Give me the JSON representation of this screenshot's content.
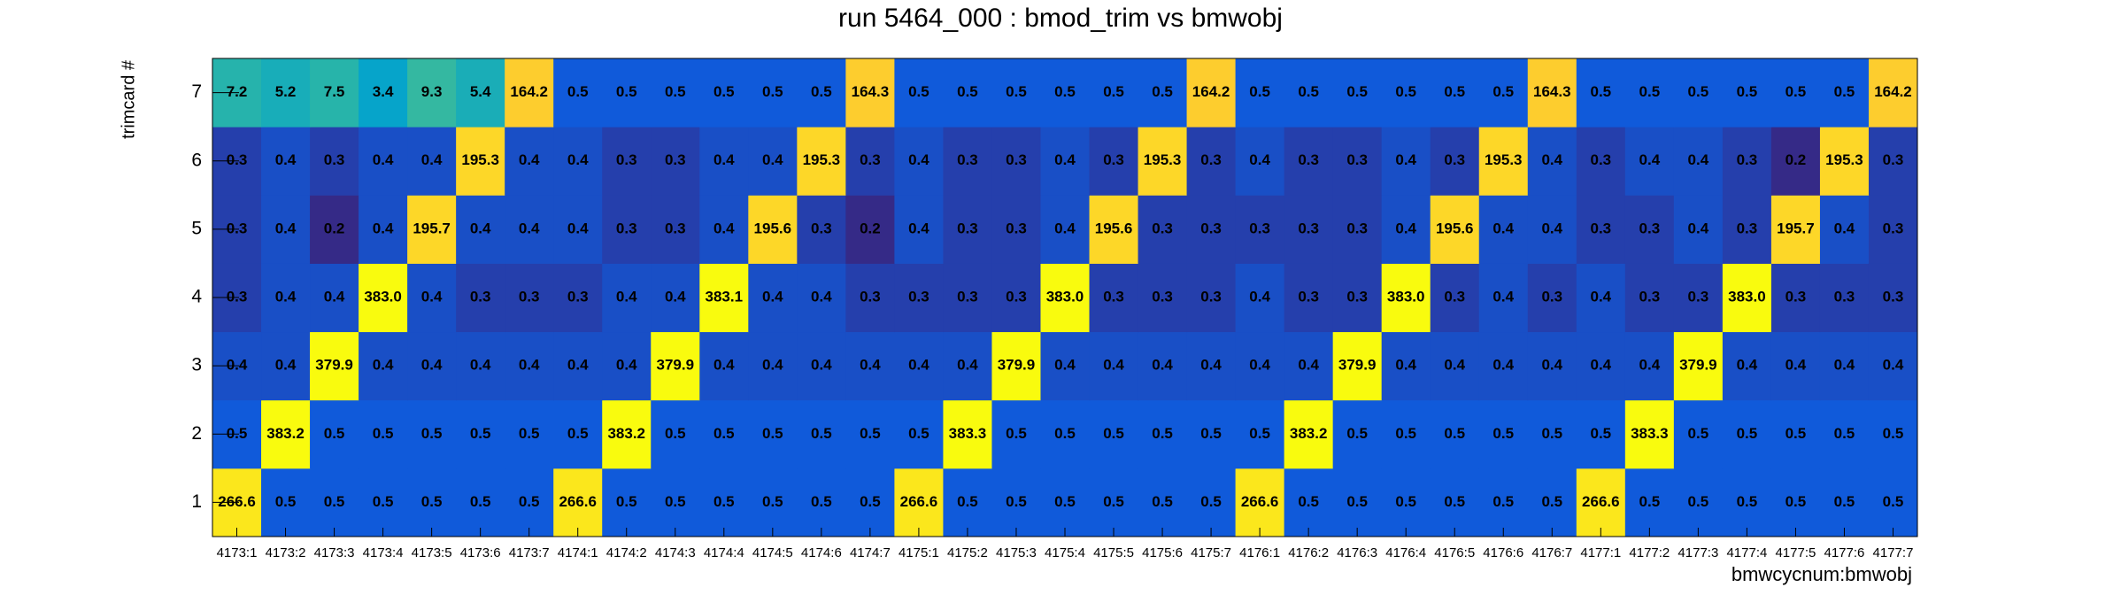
{
  "chart_data": {
    "type": "heatmap",
    "title": "run 5464_000 : bmod_trim vs bmwobj",
    "x_label": "bmwcycnum:bmwobj",
    "y_label": "trimcard #",
    "log_z": true,
    "palette": [
      "#352a87",
      "#0f5cdd",
      "#1481d6",
      "#06a4ca",
      "#2eb7a4",
      "#87bf77",
      "#d1bb59",
      "#fec832",
      "#f9fb0e"
    ],
    "x_categories": [
      "4173:1",
      "4173:2",
      "4173:3",
      "4173:4",
      "4173:5",
      "4173:6",
      "4173:7",
      "4174:1",
      "4174:2",
      "4174:3",
      "4174:4",
      "4174:5",
      "4174:6",
      "4174:7",
      "4175:1",
      "4175:2",
      "4175:3",
      "4175:4",
      "4175:5",
      "4175:6",
      "4175:7",
      "4176:1",
      "4176:2",
      "4176:3",
      "4176:4",
      "4176:5",
      "4176:6",
      "4176:7",
      "4177:1",
      "4177:2",
      "4177:3",
      "4177:4",
      "4177:5",
      "4177:6",
      "4177:7"
    ],
    "y_categories": [
      "1",
      "2",
      "3",
      "4",
      "5",
      "6",
      "7"
    ],
    "values": [
      [
        266.6,
        0.5,
        0.5,
        0.5,
        0.5,
        0.5,
        0.5,
        266.6,
        0.5,
        0.5,
        0.5,
        0.5,
        0.5,
        0.5,
        266.6,
        0.5,
        0.5,
        0.5,
        0.5,
        0.5,
        0.5,
        266.6,
        0.5,
        0.5,
        0.5,
        0.5,
        0.5,
        0.5,
        266.6,
        0.5,
        0.5,
        0.5,
        0.5,
        0.5,
        0.5
      ],
      [
        0.5,
        383.2,
        0.5,
        0.5,
        0.5,
        0.5,
        0.5,
        0.5,
        383.2,
        0.5,
        0.5,
        0.5,
        0.5,
        0.5,
        0.5,
        383.3,
        0.5,
        0.5,
        0.5,
        0.5,
        0.5,
        0.5,
        383.2,
        0.5,
        0.5,
        0.5,
        0.5,
        0.5,
        0.5,
        383.3,
        0.5,
        0.5,
        0.5,
        0.5,
        0.5
      ],
      [
        0.4,
        0.4,
        379.9,
        0.4,
        0.4,
        0.4,
        0.4,
        0.4,
        0.4,
        379.9,
        0.4,
        0.4,
        0.4,
        0.4,
        0.4,
        0.4,
        379.9,
        0.4,
        0.4,
        0.4,
        0.4,
        0.4,
        0.4,
        379.9,
        0.4,
        0.4,
        0.4,
        0.4,
        0.4,
        0.4,
        379.9,
        0.4,
        0.4,
        0.4,
        0.4
      ],
      [
        0.3,
        0.4,
        0.4,
        383,
        0.4,
        0.3,
        0.3,
        0.3,
        0.4,
        0.4,
        383.1,
        0.4,
        0.4,
        0.3,
        0.3,
        0.3,
        0.3,
        383,
        0.3,
        0.3,
        0.3,
        0.4,
        0.3,
        0.3,
        383,
        0.3,
        0.4,
        0.3,
        0.4,
        0.3,
        0.3,
        383,
        0.3,
        0.3,
        0.3
      ],
      [
        0.3,
        0.4,
        0.2,
        0.4,
        195.7,
        0.4,
        0.4,
        0.4,
        0.3,
        0.3,
        0.4,
        195.6,
        0.3,
        0.2,
        0.4,
        0.3,
        0.3,
        0.4,
        195.6,
        0.3,
        0.3,
        0.3,
        0.3,
        0.3,
        0.4,
        195.6,
        0.4,
        0.4,
        0.3,
        0.3,
        0.4,
        0.3,
        195.7,
        0.4,
        0.3
      ],
      [
        0.3,
        0.4,
        0.3,
        0.4,
        0.4,
        195.3,
        0.4,
        0.4,
        0.3,
        0.3,
        0.4,
        0.4,
        195.3,
        0.3,
        0.4,
        0.3,
        0.3,
        0.4,
        0.3,
        195.3,
        0.3,
        0.4,
        0.3,
        0.3,
        0.4,
        0.3,
        195.3,
        0.4,
        0.3,
        0.4,
        0.4,
        0.3,
        0.2,
        195.3,
        0.3
      ],
      [
        7.2,
        5.2,
        7.5,
        3.4,
        9.3,
        5.4,
        164.2,
        0.5,
        0.5,
        0.5,
        0.5,
        0.5,
        0.5,
        164.3,
        0.5,
        0.5,
        0.5,
        0.5,
        0.5,
        0.5,
        164.2,
        0.5,
        0.5,
        0.5,
        0.5,
        0.5,
        0.5,
        164.3,
        0.5,
        0.5,
        0.5,
        0.5,
        0.5,
        0.5,
        164.2
      ]
    ],
    "value_labels": [
      [
        "266.6",
        "0.5",
        "0.5",
        "0.5",
        "0.5",
        "0.5",
        "0.5",
        "266.6",
        "0.5",
        "0.5",
        "0.5",
        "0.5",
        "0.5",
        "0.5",
        "266.6",
        "0.5",
        "0.5",
        "0.5",
        "0.5",
        "0.5",
        "0.5",
        "266.6",
        "0.5",
        "0.5",
        "0.5",
        "0.5",
        "0.5",
        "0.5",
        "266.6",
        "0.5",
        "0.5",
        "0.5",
        "0.5",
        "0.5",
        "0.5"
      ],
      [
        "0.5",
        "383.2",
        "0.5",
        "0.5",
        "0.5",
        "0.5",
        "0.5",
        "0.5",
        "383.2",
        "0.5",
        "0.5",
        "0.5",
        "0.5",
        "0.5",
        "0.5",
        "383.3",
        "0.5",
        "0.5",
        "0.5",
        "0.5",
        "0.5",
        "0.5",
        "383.2",
        "0.5",
        "0.5",
        "0.5",
        "0.5",
        "0.5",
        "0.5",
        "383.3",
        "0.5",
        "0.5",
        "0.5",
        "0.5",
        "0.5"
      ],
      [
        "0.4",
        "0.4",
        "379.9",
        "0.4",
        "0.4",
        "0.4",
        "0.4",
        "0.4",
        "0.4",
        "379.9",
        "0.4",
        "0.4",
        "0.4",
        "0.4",
        "0.4",
        "0.4",
        "379.9",
        "0.4",
        "0.4",
        "0.4",
        "0.4",
        "0.4",
        "0.4",
        "379.9",
        "0.4",
        "0.4",
        "0.4",
        "0.4",
        "0.4",
        "0.4",
        "379.9",
        "0.4",
        "0.4",
        "0.4",
        "0.4"
      ],
      [
        "0.3",
        "0.4",
        "0.4",
        "383.0",
        "0.4",
        "0.3",
        "0.3",
        "0.3",
        "0.4",
        "0.4",
        "383.1",
        "0.4",
        "0.4",
        "0.3",
        "0.3",
        "0.3",
        "0.3",
        "383.0",
        "0.3",
        "0.3",
        "0.3",
        "0.4",
        "0.3",
        "0.3",
        "383.0",
        "0.3",
        "0.4",
        "0.3",
        "0.4",
        "0.3",
        "0.3",
        "383.0",
        "0.3",
        "0.3",
        "0.3"
      ],
      [
        "0.3",
        "0.4",
        "0.2",
        "0.4",
        "195.7",
        "0.4",
        "0.4",
        "0.4",
        "0.3",
        "0.3",
        "0.4",
        "195.6",
        "0.3",
        "0.2",
        "0.4",
        "0.3",
        "0.3",
        "0.4",
        "195.6",
        "0.3",
        "0.3",
        "0.3",
        "0.3",
        "0.3",
        "0.4",
        "195.6",
        "0.4",
        "0.4",
        "0.3",
        "0.3",
        "0.4",
        "0.3",
        "195.7",
        "0.4",
        "0.3"
      ],
      [
        "0.3",
        "0.4",
        "0.3",
        "0.4",
        "0.4",
        "195.3",
        "0.4",
        "0.4",
        "0.3",
        "0.3",
        "0.4",
        "0.4",
        "195.3",
        "0.3",
        "0.4",
        "0.3",
        "0.3",
        "0.4",
        "0.3",
        "195.3",
        "0.3",
        "0.4",
        "0.3",
        "0.3",
        "0.4",
        "0.3",
        "195.3",
        "0.4",
        "0.3",
        "0.4",
        "0.4",
        "0.3",
        "0.2",
        "195.3",
        "0.3"
      ],
      [
        "7.2",
        "5.2",
        "7.5",
        "3.4",
        "9.3",
        "5.4",
        "164.2",
        "0.5",
        "0.5",
        "0.5",
        "0.5",
        "0.5",
        "0.5",
        "164.3",
        "0.5",
        "0.5",
        "0.5",
        "0.5",
        "0.5",
        "0.5",
        "164.2",
        "0.5",
        "0.5",
        "0.5",
        "0.5",
        "0.5",
        "0.5",
        "164.3",
        "0.5",
        "0.5",
        "0.5",
        "0.5",
        "0.5",
        "0.5",
        "164.2"
      ]
    ]
  }
}
